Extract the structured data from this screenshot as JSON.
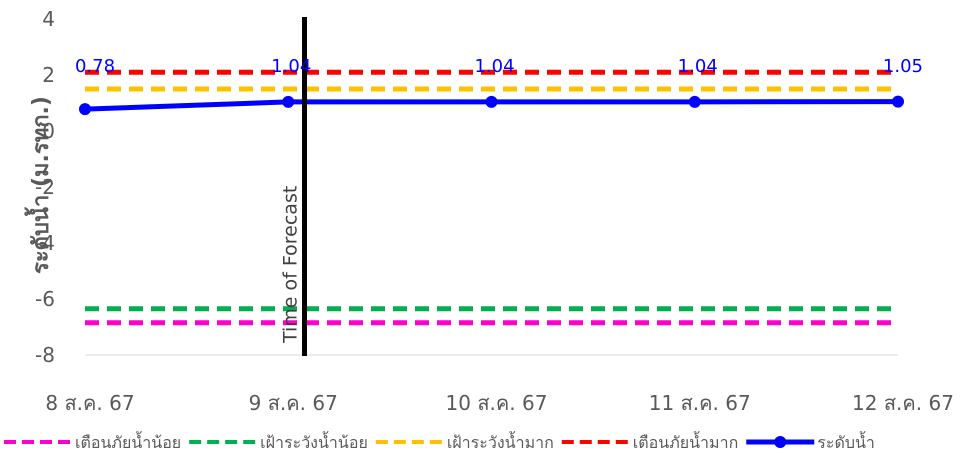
{
  "chart_data": {
    "type": "line",
    "x": [
      "8 ส.ค. 67",
      "9 ส.ค. 67",
      "10 ส.ค. 67",
      "11 ส.ค. 67",
      "12 ส.ค. 67"
    ],
    "ylabel": "ระดับน้ำ (ม.รทก.)",
    "ylim": [
      -8,
      4
    ],
    "yticks": [
      "-8",
      "-6",
      "-4",
      "-2",
      "0",
      "2",
      "4"
    ],
    "grid": false,
    "series": [
      {
        "name": "เตือนภัยน้ำน้อย",
        "values": [
          -6.85,
          -6.85,
          -6.85,
          -6.85,
          -6.85
        ],
        "color": "#ff00cc",
        "style": "dashed"
      },
      {
        "name": "เฝ้าระวังน้ำน้อย",
        "values": [
          -6.35,
          -6.35,
          -6.35,
          -6.35,
          -6.35
        ],
        "color": "#00b050",
        "style": "dashed"
      },
      {
        "name": "เฝ้าระวังน้ำมาก",
        "values": [
          1.5,
          1.5,
          1.5,
          1.5,
          1.5
        ],
        "color": "#ffc000",
        "style": "dashed"
      },
      {
        "name": "เตือนภัยน้ำมาก",
        "values": [
          2.1,
          2.1,
          2.1,
          2.1,
          2.1
        ],
        "color": "#ff0000",
        "style": "dashed"
      },
      {
        "name": "ระดับน้ำ",
        "values": [
          0.78,
          1.04,
          1.04,
          1.04,
          1.05
        ],
        "color": "#0000ff",
        "style": "solid-markers",
        "data_labels": [
          "0.78",
          "1.04",
          "1.04",
          "1.04",
          "1.05"
        ]
      }
    ],
    "forecast_marker": {
      "label": "Time of Forecast",
      "x_index": 1.08,
      "color": "#000000"
    },
    "legend_position": "bottom"
  }
}
